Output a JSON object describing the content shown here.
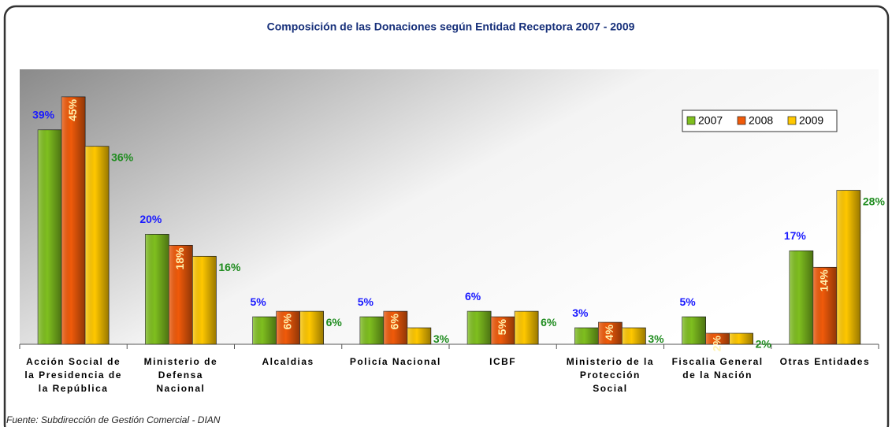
{
  "chart_data": {
    "type": "bar",
    "title": "Composición de las Donaciones según Entidad Receptora 2007 - 2009",
    "categories": [
      "Acción Social de la Presidencia de la República",
      "Ministerio de Defensa Nacional",
      "Alcaldias",
      "Policía Nacional",
      "ICBF",
      "Ministerio de la Protección Social",
      "Fiscalia General de la Nación",
      "Otras Entidades"
    ],
    "series": [
      {
        "name": "2007",
        "color": "#7fbf1f",
        "label_color": "#1a1aff",
        "values": [
          39,
          20,
          5,
          5,
          6,
          3,
          5,
          17
        ],
        "value_labels": [
          "39%",
          "20%",
          "5%",
          "5%",
          "6%",
          "3%",
          "5%",
          "17%"
        ]
      },
      {
        "name": "2008",
        "color": "#f05a0a",
        "label_color": "#fff3b0",
        "values": [
          45,
          18,
          6,
          6,
          5,
          4,
          2,
          14
        ],
        "value_labels": [
          "45%",
          "18%",
          "6%",
          "6%",
          "5%",
          "4%",
          "2%",
          "14%"
        ]
      },
      {
        "name": "2009",
        "color": "#ffc800",
        "label_color": "#1f8c1f",
        "values": [
          36,
          16,
          6,
          3,
          6,
          3,
          2,
          28
        ],
        "value_labels": [
          "36%",
          "16%",
          "6%",
          "3%",
          "6%",
          "3%",
          "2%",
          "28%"
        ]
      }
    ],
    "ylim": [
      0,
      50
    ],
    "legend": "upper right",
    "source": "Fuente: Subdirección de Gestión Comercial - DIAN"
  }
}
